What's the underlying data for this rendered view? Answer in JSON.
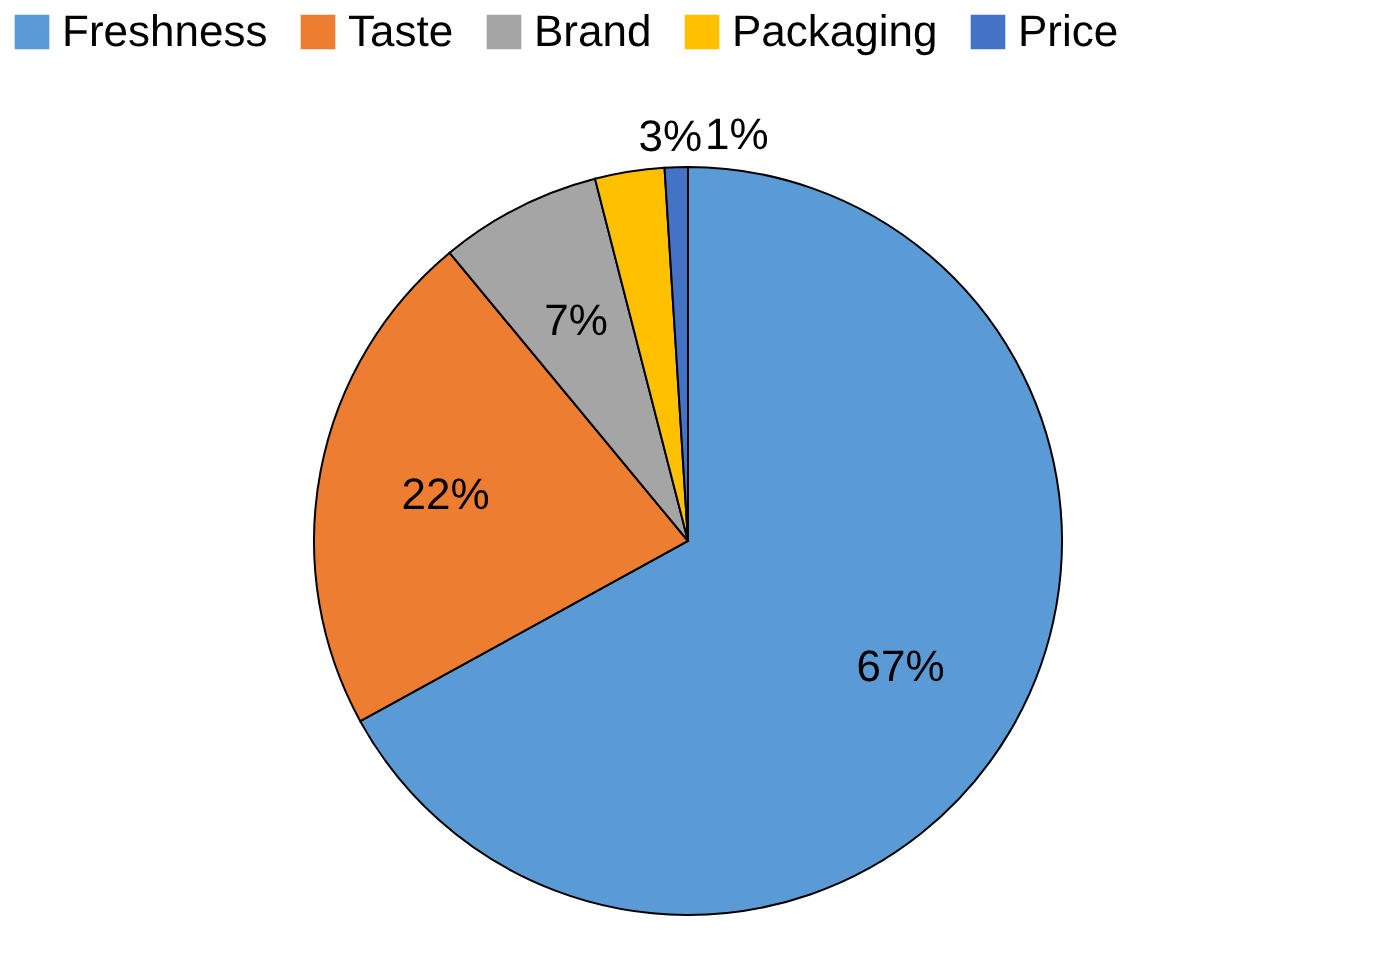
{
  "chart_data": {
    "type": "pie",
    "categories": [
      "Freshness",
      "Taste",
      "Brand",
      "Packaging",
      "Price"
    ],
    "values": [
      67,
      22,
      7,
      3,
      1
    ],
    "colors": [
      "#5b9bd5",
      "#ed7d31",
      "#a5a5a5",
      "#ffc000",
      "#4472c4"
    ],
    "value_labels": [
      "67%",
      "22%",
      "7%",
      "3%",
      "1%"
    ],
    "legend": "top"
  }
}
